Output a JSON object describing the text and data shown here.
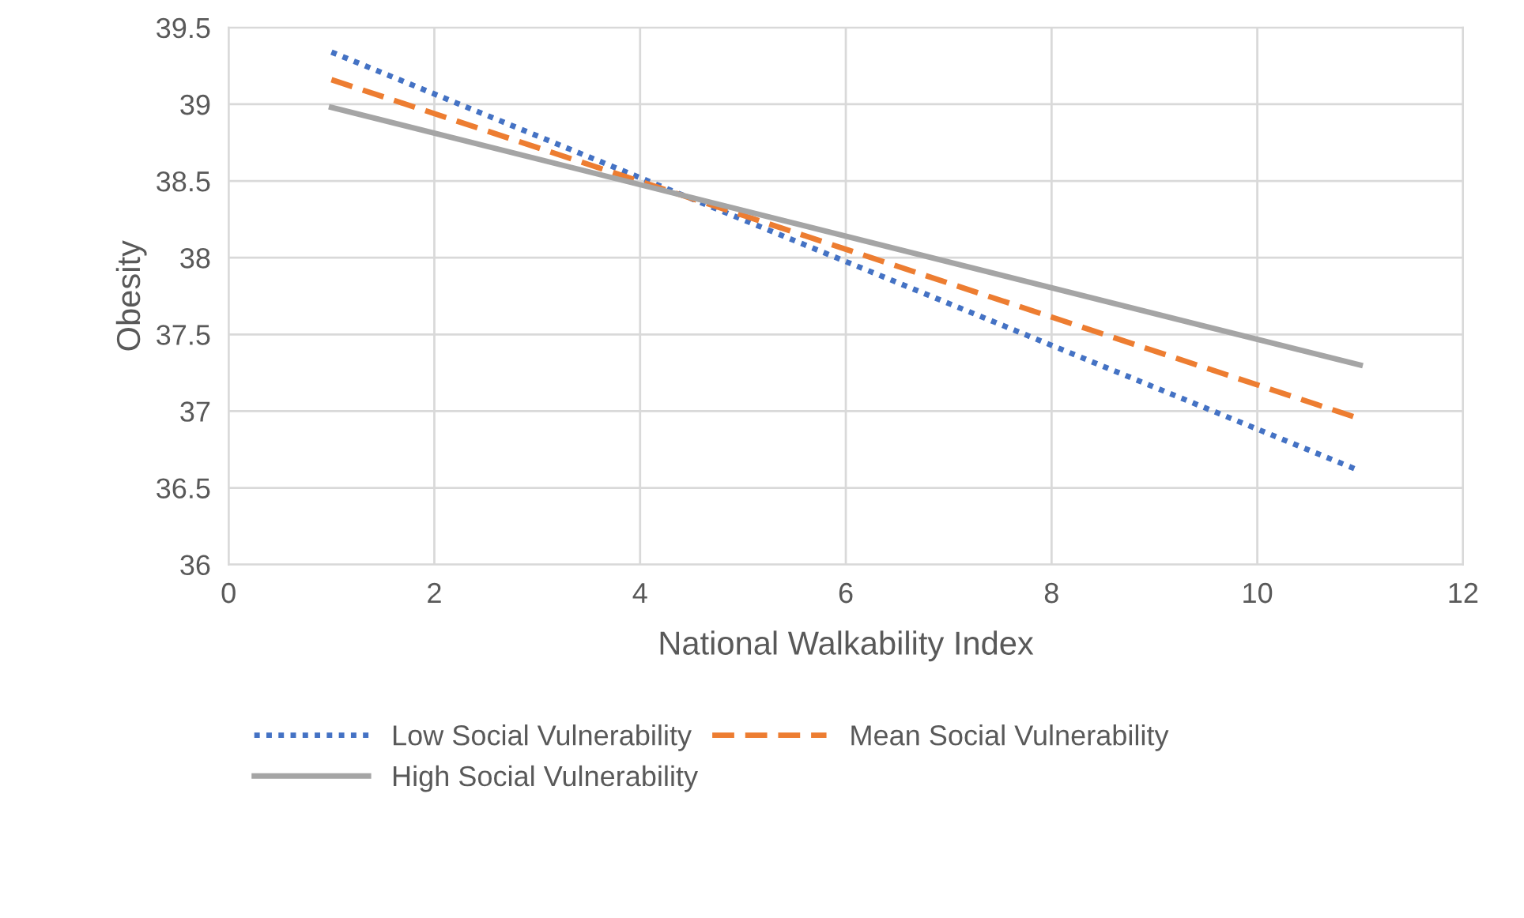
{
  "chart_data": {
    "type": "line",
    "xlabel": "National Walkability Index",
    "ylabel": "Obesity",
    "xlim": [
      0,
      12
    ],
    "xticks": [
      0,
      2,
      4,
      6,
      8,
      10,
      12
    ],
    "ylim": [
      36,
      39.5
    ],
    "yticks": [
      36,
      36.5,
      37,
      37.5,
      38,
      38.5,
      39,
      39.5
    ],
    "grid": true,
    "legend": "bottom",
    "marker": "none",
    "x": [
      1,
      11
    ],
    "series": [
      {
        "name": "Low Social Vulnerability",
        "color": "#4472c4",
        "line_style": "dotted",
        "values": [
          39.34,
          36.61
        ]
      },
      {
        "name": "Mean Social Vulnerability",
        "color": "#ed7d31",
        "line_style": "dashed",
        "values": [
          39.16,
          36.95
        ]
      },
      {
        "name": "High Social Vulnerability",
        "color": "#a5a5a5",
        "line_style": "solid",
        "values": [
          38.98,
          37.3
        ]
      }
    ]
  }
}
